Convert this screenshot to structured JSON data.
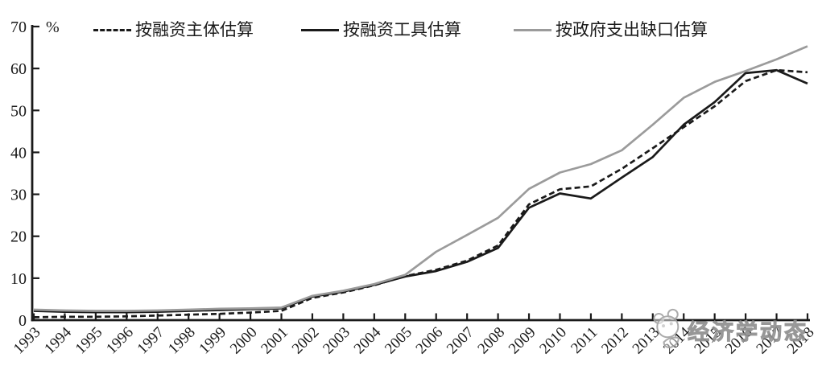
{
  "chart_data": {
    "type": "line",
    "title": "",
    "unit_label": "%",
    "xlabel": "",
    "ylabel": "%",
    "ylim": [
      0,
      70
    ],
    "yticks": [
      0,
      10,
      20,
      30,
      40,
      50,
      60,
      70
    ],
    "grid": false,
    "legend_position": "top",
    "axis_color": "#1a1a1a",
    "x": [
      1993,
      1994,
      1995,
      1996,
      1997,
      1998,
      1999,
      2000,
      2001,
      2002,
      2003,
      2004,
      2005,
      2006,
      2007,
      2008,
      2009,
      2010,
      2011,
      2012,
      2013,
      2014,
      2015,
      2016,
      2017,
      2018
    ],
    "series": [
      {
        "name": "按融资主体估算",
        "style": "dashed",
        "color": "#1a1a1a",
        "slug": "series-line-dashed-black",
        "values": [
          0.7,
          0.8,
          0.8,
          0.9,
          1.1,
          1.3,
          1.5,
          1.8,
          2.2,
          5.3,
          6.6,
          8.3,
          10.5,
          12.0,
          14.2,
          17.8,
          27.6,
          31.2,
          31.9,
          36.1,
          41.0,
          46.0,
          51.0,
          57.0,
          59.6,
          59.1
        ]
      },
      {
        "name": "按融资工具估算",
        "style": "solid",
        "color": "#1a1a1a",
        "slug": "series-line-solid-black",
        "values": [
          2.2,
          2.0,
          1.9,
          1.9,
          2.0,
          2.2,
          2.4,
          2.6,
          2.8,
          5.6,
          6.8,
          8.4,
          10.4,
          11.7,
          13.9,
          17.2,
          26.8,
          30.2,
          29.0,
          34.0,
          38.9,
          46.6,
          52.0,
          58.9,
          59.6,
          56.4
        ]
      },
      {
        "name": "按政府支出缺口估算",
        "style": "solid",
        "color": "#9b9b9b",
        "slug": "series-line-solid-gray",
        "values": [
          2.5,
          2.3,
          2.2,
          2.2,
          2.3,
          2.5,
          2.7,
          2.8,
          3.0,
          5.8,
          7.0,
          8.6,
          10.8,
          16.3,
          20.3,
          24.4,
          31.3,
          35.2,
          37.2,
          40.5,
          46.6,
          53.0,
          56.8,
          59.4,
          62.2,
          65.3
        ]
      }
    ]
  },
  "watermark": {
    "text": "经济学动态",
    "mascot": "panda-mascot"
  }
}
